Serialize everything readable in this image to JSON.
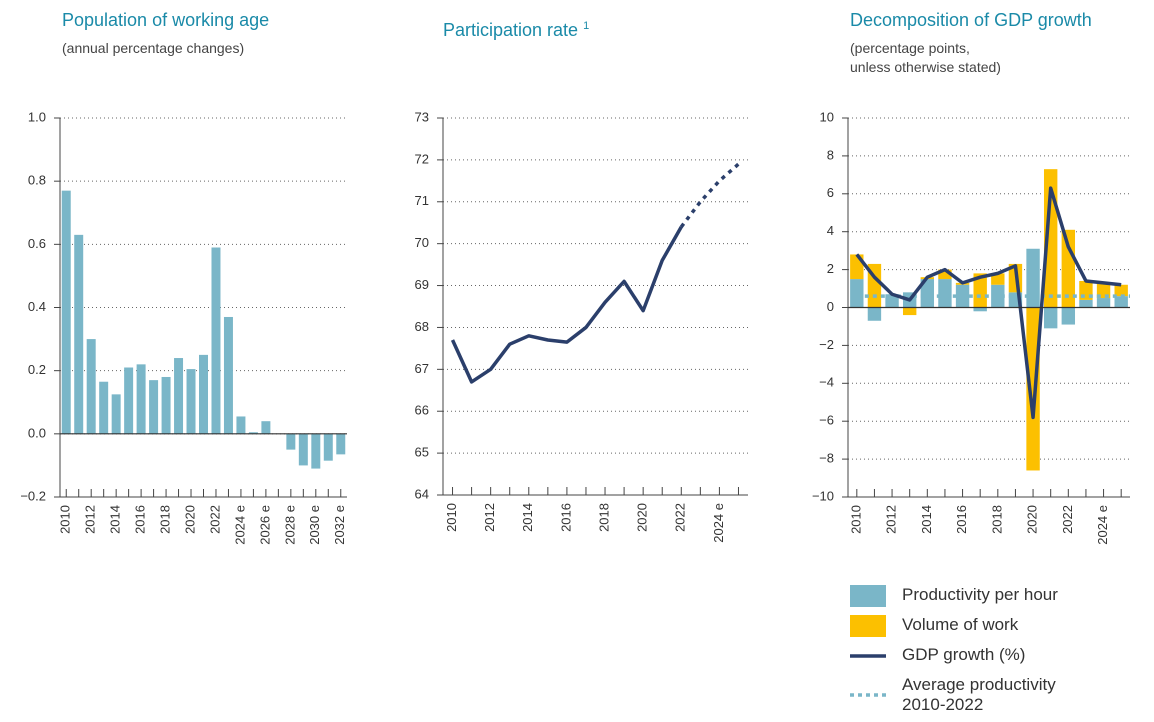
{
  "chart_data": [
    {
      "type": "bar",
      "title": "Population of working age",
      "subtitle": [
        "(annual percentage changes)"
      ],
      "categories": [
        "2010",
        null,
        "2012",
        null,
        "2014",
        null,
        "2016",
        null,
        "2018",
        null,
        "2020",
        null,
        "2022",
        null,
        "2024 e",
        null,
        "2026 e",
        null,
        "2028 e",
        null,
        "2030 e",
        null,
        "2032 e"
      ],
      "values": [
        0.77,
        0.63,
        0.3,
        0.165,
        0.125,
        0.21,
        0.22,
        0.17,
        0.18,
        0.24,
        0.205,
        0.25,
        0.59,
        0.37,
        0.055,
        0.005,
        0.04,
        0.0,
        -0.05,
        -0.1,
        -0.11,
        -0.085,
        -0.065
      ],
      "color": "#7ab6c8",
      "zero_line": true,
      "grid": true,
      "ylim": [
        -0.2,
        1.0
      ],
      "yticks": [
        {
          "value": -0.2,
          "label": "−0.2"
        },
        {
          "value": 0,
          "label": "0.0"
        },
        0.2,
        0.4,
        0.6,
        0.8,
        {
          "value": 1,
          "label": "1.0"
        }
      ]
    },
    {
      "type": "line",
      "title": "Participation rate",
      "footnote_mark": "1",
      "categories": [
        "2010",
        null,
        "2012",
        null,
        "2014",
        null,
        "2016",
        null,
        "2018",
        null,
        "2020",
        null,
        "2022",
        null,
        "2024 e",
        null
      ],
      "series": [
        {
          "color": "#2b3f6b",
          "style": "solid",
          "values": [
            67.7,
            66.7,
            67.0,
            67.6,
            67.8,
            67.7,
            67.65,
            68.0,
            68.6,
            69.1,
            68.4,
            69.6,
            70.4,
            null,
            null,
            null
          ]
        },
        {
          "color": "#2b3f6b",
          "style": "dotted",
          "values": [
            null,
            null,
            null,
            null,
            null,
            null,
            null,
            null,
            null,
            null,
            null,
            null,
            70.4,
            71.0,
            71.5,
            71.9
          ]
        }
      ],
      "grid": true,
      "zero_line": false,
      "ylim": [
        64,
        73
      ],
      "yticks": [
        64,
        65,
        66,
        67,
        68,
        69,
        70,
        71,
        72,
        73
      ]
    },
    {
      "type": "combo",
      "title": "Decomposition of GDP growth",
      "subtitle": [
        "(percentage points,",
        "unless otherwise stated)"
      ],
      "categories": [
        "2010",
        null,
        "2012",
        null,
        "2014",
        null,
        "2016",
        null,
        "2018",
        null,
        "2020",
        null,
        "2022",
        null,
        "2024 e",
        null
      ],
      "series": [
        {
          "name": "Productivity per hour",
          "kind": "bar",
          "color": "#7ab6c8",
          "values": [
            1.5,
            -0.7,
            0.7,
            0.8,
            1.5,
            1.5,
            1.2,
            -0.2,
            1.2,
            0.8,
            3.1,
            -1.1,
            -0.9,
            0.4,
            0.5,
            0.6
          ]
        },
        {
          "name": "Volume of work",
          "kind": "bar",
          "color": "#fcc000",
          "values": [
            1.3,
            2.3,
            0.0,
            -0.4,
            0.1,
            0.5,
            0.1,
            1.8,
            0.6,
            1.5,
            -8.6,
            7.3,
            4.1,
            1.0,
            0.8,
            0.6
          ]
        },
        {
          "name": "GDP growth (%)",
          "kind": "line",
          "color": "#2b3f6b",
          "values": [
            2.8,
            1.6,
            0.7,
            0.4,
            1.6,
            2.0,
            1.3,
            1.6,
            1.8,
            2.2,
            -5.8,
            6.3,
            3.2,
            1.4,
            1.3,
            1.2
          ]
        },
        {
          "name": "Average productivity 2010-2022",
          "kind": "hline",
          "color": "#7ab6c8",
          "value": 0.6
        }
      ],
      "grid": true,
      "zero_line": true,
      "ylim": [
        -10,
        10
      ],
      "yticks": [
        {
          "value": -10,
          "label": "−10"
        },
        {
          "value": -8,
          "label": "−8"
        },
        {
          "value": -6,
          "label": "−6"
        },
        {
          "value": -4,
          "label": "−4"
        },
        {
          "value": -2,
          "label": "−2"
        },
        0,
        2,
        4,
        6,
        8,
        10
      ]
    }
  ]
}
